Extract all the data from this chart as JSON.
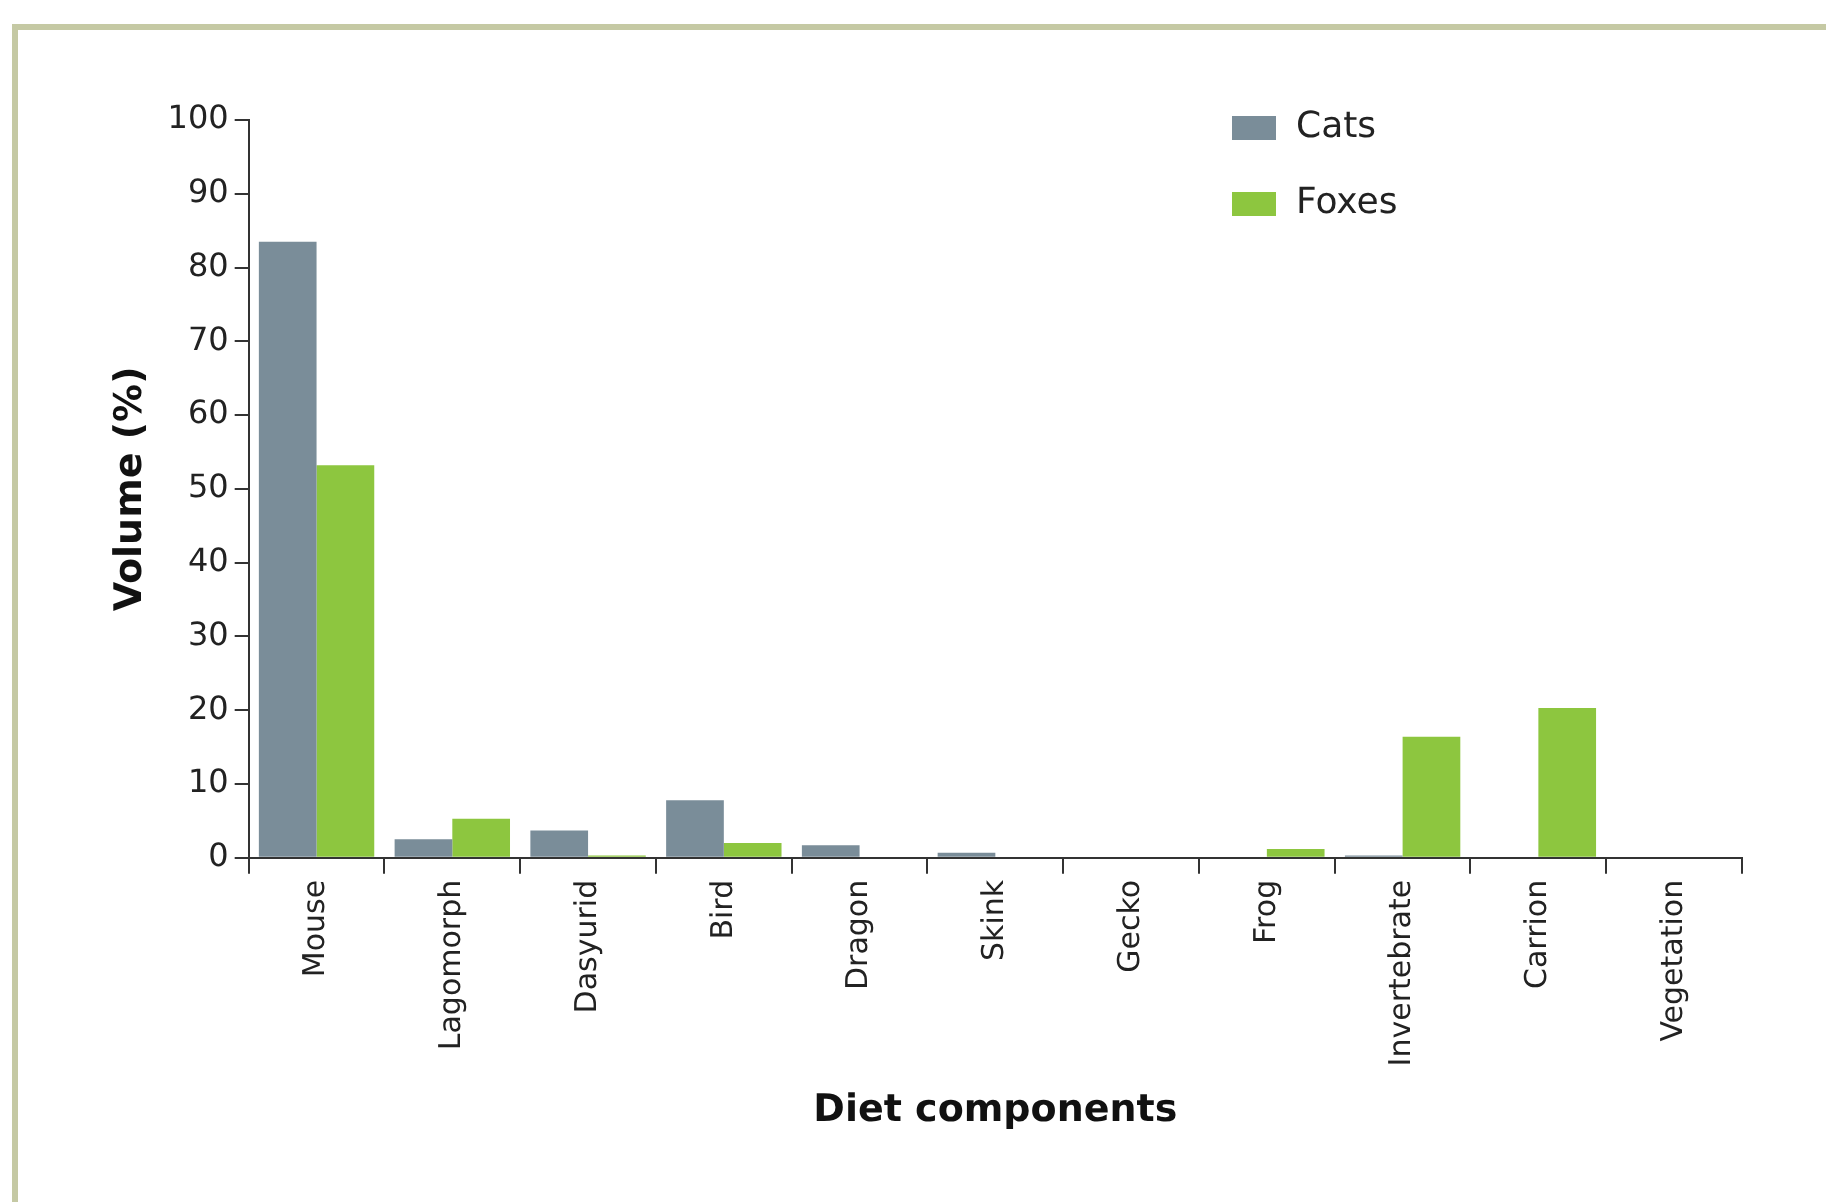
{
  "chart_data": {
    "type": "bar",
    "xlabel": "Diet components",
    "ylabel": "Volume (%)",
    "categories": [
      "Mouse",
      "Lagomorph",
      "Dasyurid",
      "Bird",
      "Dragon",
      "Skink",
      "Gecko",
      "Frog",
      "Invertebrate",
      "Carrion",
      "Vegetation"
    ],
    "series": [
      {
        "name": "Cats",
        "color": "#7a8d99",
        "values": [
          83.5,
          2.5,
          3.7,
          7.8,
          1.7,
          0.7,
          0,
          0,
          0.3,
          0,
          0
        ]
      },
      {
        "name": "Foxes",
        "color": "#8dc63f",
        "values": [
          53.2,
          5.3,
          0.3,
          2.0,
          0,
          0,
          0,
          1.2,
          16.4,
          20.3,
          0
        ]
      }
    ],
    "ylim": [
      0,
      100
    ],
    "yticks": [
      0,
      10,
      20,
      30,
      40,
      50,
      60,
      70,
      80,
      90,
      100
    ],
    "grid": false,
    "legend": "top right"
  }
}
